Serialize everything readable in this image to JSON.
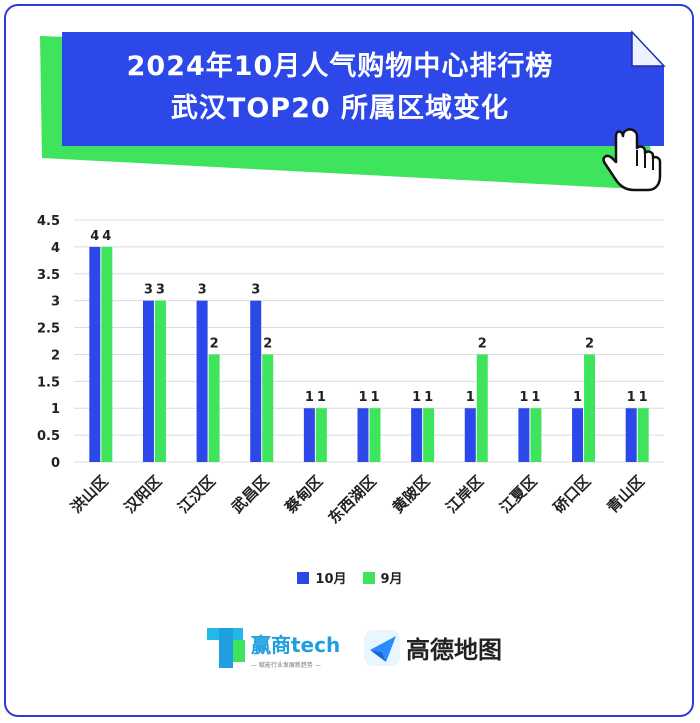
{
  "title": {
    "line1": "2024年10月人气购物中心排行榜",
    "line2": "武汉TOP20 所属区域变化"
  },
  "colors": {
    "series_10": "#2c48e8",
    "series_9": "#3ee45c",
    "banner_blue": "#2c48e8",
    "banner_green": "#3ee45c"
  },
  "chart_data": {
    "type": "bar",
    "categories": [
      "洪山区",
      "汉阳区",
      "江汉区",
      "武昌区",
      "蔡甸区",
      "东西湖区",
      "黄陂区",
      "江岸区",
      "江夏区",
      "硚口区",
      "青山区"
    ],
    "series": [
      {
        "name": "10月",
        "values": [
          4,
          3,
          3,
          3,
          1,
          1,
          1,
          1,
          1,
          1,
          1
        ]
      },
      {
        "name": "9月",
        "values": [
          4,
          3,
          2,
          2,
          1,
          1,
          1,
          2,
          1,
          2,
          1
        ]
      }
    ],
    "y_ticks": [
      "0",
      "0.5",
      "1",
      "1.5",
      "2",
      "2.5",
      "3",
      "3.5",
      "4",
      "4.5"
    ],
    "ylim": [
      0,
      4.5
    ],
    "grid": true,
    "legend_position": "bottom"
  },
  "logos": {
    "left_name": "赢商tech",
    "left_slogan": "— 赋能行业发展新趋势 —",
    "right_name": "高德地图"
  }
}
